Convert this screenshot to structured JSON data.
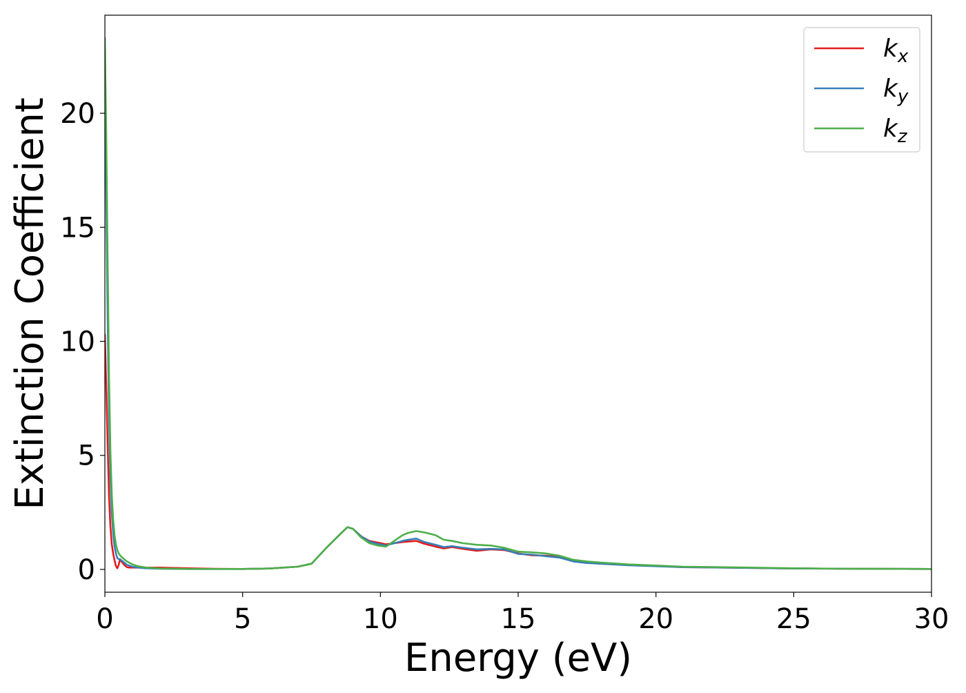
{
  "chart_data": {
    "type": "line",
    "title": "",
    "xlabel": "Energy (eV)",
    "ylabel": "Extinction Coefficient",
    "xlim": [
      0,
      30
    ],
    "ylim": [
      -1,
      24.3
    ],
    "xticks": [
      0,
      5,
      10,
      15,
      20,
      25,
      30
    ],
    "yticks": [
      0,
      5,
      10,
      15,
      20
    ],
    "grid": false,
    "legend_position": "top-right",
    "series": [
      {
        "name": "k",
        "name_subscript": "x",
        "color": "#e41a1c",
        "x": [
          0,
          0.05,
          0.1,
          0.15,
          0.2,
          0.25,
          0.3,
          0.35,
          0.4,
          0.45,
          0.5,
          0.55,
          0.6,
          0.7,
          0.8,
          0.9,
          1.0,
          1.2,
          1.5,
          2.0,
          3.0,
          4.0,
          5.0,
          6.0,
          7.0,
          7.5,
          8.0,
          8.5,
          8.8,
          9.0,
          9.3,
          9.6,
          9.9,
          10.2,
          10.5,
          10.8,
          11.0,
          11.3,
          11.6,
          12.0,
          12.3,
          12.6,
          13.0,
          13.5,
          14.0,
          14.5,
          15.0,
          15.5,
          16.0,
          16.5,
          17.0,
          17.5,
          18.0,
          19.0,
          20.0,
          21.0,
          23.0,
          25.0,
          27.0,
          30.0
        ],
        "values": [
          10.3,
          8.0,
          5.5,
          3.2,
          1.9,
          1.1,
          0.7,
          0.4,
          0.15,
          0.05,
          0.2,
          0.45,
          0.35,
          0.2,
          0.1,
          0.08,
          0.08,
          0.08,
          0.08,
          0.08,
          0.05,
          0.03,
          0.02,
          0.04,
          0.12,
          0.25,
          0.9,
          1.5,
          1.85,
          1.78,
          1.45,
          1.25,
          1.18,
          1.1,
          1.15,
          1.2,
          1.22,
          1.25,
          1.12,
          1.0,
          0.92,
          0.98,
          0.9,
          0.82,
          0.88,
          0.85,
          0.7,
          0.62,
          0.6,
          0.55,
          0.38,
          0.3,
          0.25,
          0.2,
          0.15,
          0.1,
          0.07,
          0.04,
          0.03,
          0.02
        ]
      },
      {
        "name": "k",
        "name_subscript": "y",
        "color": "#377eb8",
        "x": [
          0,
          0.05,
          0.1,
          0.15,
          0.2,
          0.25,
          0.3,
          0.35,
          0.4,
          0.45,
          0.5,
          0.6,
          0.7,
          0.8,
          1.0,
          1.2,
          1.5,
          2.0,
          3.0,
          4.0,
          5.0,
          6.0,
          7.0,
          7.5,
          8.0,
          8.5,
          8.8,
          9.0,
          9.3,
          9.6,
          9.9,
          10.2,
          10.5,
          10.8,
          11.0,
          11.3,
          11.6,
          12.0,
          12.3,
          12.6,
          13.0,
          13.5,
          14.0,
          14.5,
          15.0,
          15.5,
          16.0,
          16.5,
          17.0,
          17.5,
          18.0,
          19.0,
          20.0,
          21.0,
          23.0,
          25.0,
          27.0,
          30.0
        ],
        "values": [
          21.0,
          16.5,
          11.0,
          6.8,
          4.0,
          2.5,
          1.6,
          1.0,
          0.7,
          0.5,
          0.45,
          0.4,
          0.3,
          0.2,
          0.12,
          0.08,
          0.05,
          0.03,
          0.02,
          0.02,
          0.02,
          0.04,
          0.12,
          0.25,
          0.9,
          1.5,
          1.85,
          1.78,
          1.45,
          1.22,
          1.12,
          1.05,
          1.15,
          1.25,
          1.3,
          1.35,
          1.2,
          1.08,
          0.98,
          1.02,
          0.95,
          0.88,
          0.9,
          0.88,
          0.68,
          0.65,
          0.58,
          0.52,
          0.35,
          0.28,
          0.25,
          0.18,
          0.14,
          0.1,
          0.07,
          0.04,
          0.03,
          0.02
        ]
      },
      {
        "name": "k",
        "name_subscript": "z",
        "color": "#4daf4a",
        "x": [
          0,
          0.05,
          0.1,
          0.15,
          0.2,
          0.25,
          0.3,
          0.35,
          0.4,
          0.45,
          0.5,
          0.6,
          0.7,
          0.8,
          1.0,
          1.2,
          1.5,
          2.0,
          3.0,
          4.0,
          5.0,
          6.0,
          7.0,
          7.5,
          8.0,
          8.5,
          8.8,
          9.0,
          9.3,
          9.6,
          9.9,
          10.2,
          10.5,
          10.8,
          11.0,
          11.3,
          11.6,
          12.0,
          12.3,
          12.6,
          13.0,
          13.5,
          14.0,
          14.5,
          15.0,
          15.5,
          16.0,
          16.5,
          17.0,
          17.5,
          18.0,
          19.0,
          20.0,
          21.0,
          23.0,
          25.0,
          27.0,
          30.0
        ],
        "values": [
          23.3,
          19.0,
          13.5,
          8.5,
          5.2,
          3.3,
          2.2,
          1.5,
          1.1,
          0.85,
          0.7,
          0.55,
          0.45,
          0.35,
          0.22,
          0.14,
          0.08,
          0.04,
          0.02,
          0.02,
          0.02,
          0.04,
          0.12,
          0.25,
          0.9,
          1.5,
          1.85,
          1.78,
          1.4,
          1.15,
          1.05,
          1.0,
          1.25,
          1.5,
          1.6,
          1.68,
          1.62,
          1.5,
          1.3,
          1.25,
          1.15,
          1.08,
          1.05,
          0.95,
          0.78,
          0.75,
          0.7,
          0.6,
          0.42,
          0.35,
          0.3,
          0.22,
          0.17,
          0.12,
          0.09,
          0.05,
          0.03,
          0.02
        ]
      }
    ]
  }
}
